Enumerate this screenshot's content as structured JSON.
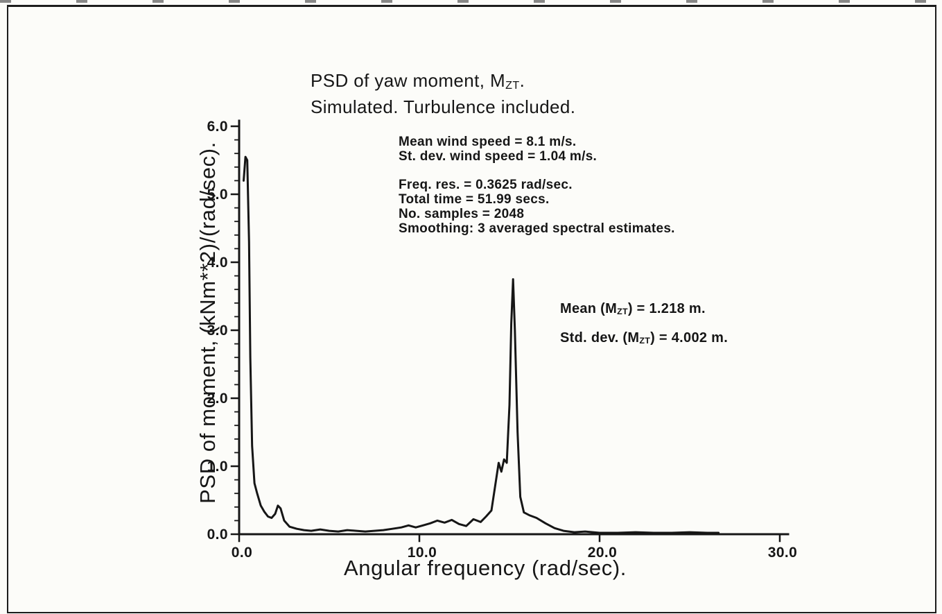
{
  "page": {
    "background": "#fcfcf9",
    "ink_color": "#161616"
  },
  "chart_data": {
    "type": "line",
    "title": "PSD of yaw moment, MZT.",
    "title_parts": {
      "prefix": "PSD of yaw moment, M",
      "sub": "ZT",
      "suffix": "."
    },
    "subtitle": "Simulated. Turbulence included.",
    "xlabel": "Angular frequency (rad/sec).",
    "ylabel": "PSD of moment, (kNm**2)/(rad/sec).",
    "xlim": [
      0,
      30
    ],
    "ylim": [
      0,
      6
    ],
    "x_tick_values": [
      0,
      10,
      20,
      30
    ],
    "x_tick_labels": [
      "0.0",
      "10.0",
      "20.0",
      "30.0"
    ],
    "y_tick_values": [
      0,
      1,
      2,
      3,
      4,
      5,
      6
    ],
    "y_tick_labels": [
      "0.0",
      "1.0",
      "2.0",
      "3.0",
      "4.0",
      "5.0",
      "6.0"
    ],
    "y_minor_step": 0.2,
    "grid": false,
    "legend": "none",
    "annotations": {
      "wind": [
        "Mean wind speed = 8.1 m/s.",
        "St. dev. wind speed = 1.04 m/s."
      ],
      "sim": [
        "Freq. res. = 0.3625 rad/sec.",
        "Total time = 51.99 secs.",
        "No. samples = 2048",
        "Smoothing: 3 averaged spectral estimates."
      ],
      "stats_mean": {
        "prefix": "Mean (M",
        "sub": "ZT",
        "suffix": ") = 1.218 m."
      },
      "stats_std": {
        "prefix": "Std. dev. (M",
        "sub": "ZT",
        "suffix": ") = 4.002 m."
      }
    },
    "series": [
      {
        "name": "PSD of yaw moment (simulated, turbulence included)",
        "points": [
          [
            0.25,
            5.2
          ],
          [
            0.35,
            5.55
          ],
          [
            0.45,
            5.5
          ],
          [
            0.55,
            4.3
          ],
          [
            0.62,
            2.6
          ],
          [
            0.72,
            1.3
          ],
          [
            0.85,
            0.75
          ],
          [
            1.0,
            0.6
          ],
          [
            1.2,
            0.42
          ],
          [
            1.4,
            0.33
          ],
          [
            1.6,
            0.26
          ],
          [
            1.8,
            0.24
          ],
          [
            2.0,
            0.3
          ],
          [
            2.15,
            0.42
          ],
          [
            2.3,
            0.38
          ],
          [
            2.5,
            0.2
          ],
          [
            2.8,
            0.11
          ],
          [
            3.2,
            0.08
          ],
          [
            3.6,
            0.06
          ],
          [
            4.0,
            0.05
          ],
          [
            4.5,
            0.07
          ],
          [
            5.0,
            0.05
          ],
          [
            5.5,
            0.04
          ],
          [
            6.0,
            0.06
          ],
          [
            6.5,
            0.05
          ],
          [
            7.0,
            0.04
          ],
          [
            7.5,
            0.05
          ],
          [
            8.0,
            0.06
          ],
          [
            8.5,
            0.08
          ],
          [
            9.0,
            0.1
          ],
          [
            9.4,
            0.13
          ],
          [
            9.8,
            0.1
          ],
          [
            10.2,
            0.13
          ],
          [
            10.6,
            0.16
          ],
          [
            11.0,
            0.2
          ],
          [
            11.4,
            0.17
          ],
          [
            11.8,
            0.21
          ],
          [
            12.2,
            0.15
          ],
          [
            12.6,
            0.12
          ],
          [
            13.0,
            0.22
          ],
          [
            13.4,
            0.18
          ],
          [
            13.7,
            0.26
          ],
          [
            14.0,
            0.35
          ],
          [
            14.2,
            0.7
          ],
          [
            14.4,
            1.05
          ],
          [
            14.55,
            0.92
          ],
          [
            14.7,
            1.1
          ],
          [
            14.85,
            1.05
          ],
          [
            15.0,
            1.9
          ],
          [
            15.1,
            3.1
          ],
          [
            15.2,
            3.75
          ],
          [
            15.3,
            3.0
          ],
          [
            15.45,
            1.5
          ],
          [
            15.6,
            0.55
          ],
          [
            15.8,
            0.32
          ],
          [
            16.1,
            0.28
          ],
          [
            16.5,
            0.24
          ],
          [
            17.0,
            0.16
          ],
          [
            17.5,
            0.09
          ],
          [
            18.0,
            0.05
          ],
          [
            18.6,
            0.03
          ],
          [
            19.2,
            0.04
          ],
          [
            20.0,
            0.02
          ],
          [
            21.0,
            0.02
          ],
          [
            22.0,
            0.03
          ],
          [
            23.0,
            0.02
          ],
          [
            24.0,
            0.02
          ],
          [
            25.0,
            0.03
          ],
          [
            26.0,
            0.02
          ],
          [
            26.6,
            0.02
          ]
        ]
      }
    ]
  }
}
